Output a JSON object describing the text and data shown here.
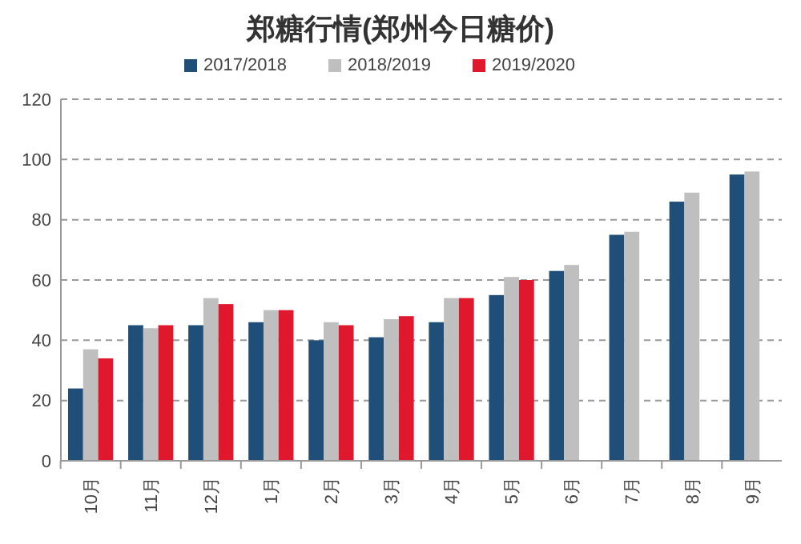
{
  "chart_data": {
    "type": "bar",
    "title": "郑糖行情(郑州今日糖价)",
    "categories": [
      "10月",
      "11月",
      "12月",
      "1月",
      "2月",
      "3月",
      "4月",
      "5月",
      "6月",
      "7月",
      "8月",
      "9月"
    ],
    "series": [
      {
        "name": "2017/2018",
        "color": "#1f4e79",
        "values": [
          24,
          45,
          45,
          46,
          40,
          41,
          46,
          55,
          63,
          75,
          86,
          95
        ]
      },
      {
        "name": "2018/2019",
        "color": "#bfbfbf",
        "values": [
          37,
          44,
          54,
          50,
          46,
          47,
          54,
          61,
          65,
          76,
          89,
          96
        ]
      },
      {
        "name": "2019/2020",
        "color": "#e0182d",
        "values": [
          34,
          45,
          52,
          50,
          45,
          48,
          54,
          60,
          null,
          null,
          null,
          null
        ]
      }
    ],
    "ylim": [
      0,
      120
    ],
    "yticks": [
      0,
      20,
      40,
      60,
      80,
      100,
      120
    ],
    "grid": "y",
    "legend": "top"
  }
}
